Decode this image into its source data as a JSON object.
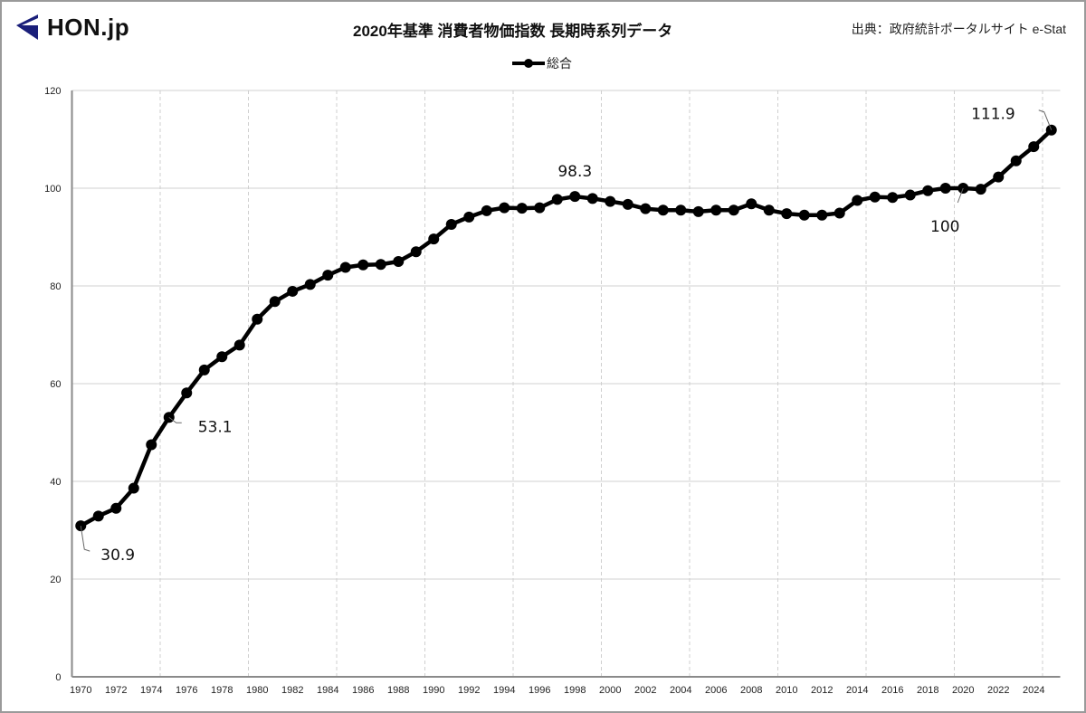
{
  "header": {
    "logo_text": "HON.jp",
    "title": "2020年基準  消費者物価指数  長期時系列データ",
    "source": "出典：政府統計ポータルサイト e-Stat"
  },
  "colors": {
    "line": "#000000",
    "logo": "#1a1f7a",
    "grid": "#d0d0d0"
  },
  "chart_data": {
    "type": "line",
    "title": "2020年基準  消費者物価指数  長期時系列データ",
    "xlabel": "",
    "ylabel": "",
    "ylim": [
      0,
      120
    ],
    "yticks": [
      0,
      20,
      40,
      60,
      80,
      100,
      120
    ],
    "xtick_labels": [
      "1970",
      "1972",
      "1974",
      "1976",
      "1978",
      "1980",
      "1982",
      "1984",
      "1986",
      "1988",
      "1990",
      "1992",
      "1994",
      "1996",
      "1998",
      "2000",
      "2002",
      "2004",
      "2006",
      "2008",
      "2010",
      "2012",
      "2014",
      "2016",
      "2018",
      "2020",
      "2022",
      "2024"
    ],
    "legend": {
      "position": "top-center",
      "entries": [
        "総合"
      ]
    },
    "grid": true,
    "x": [
      1970,
      1971,
      1972,
      1973,
      1974,
      1975,
      1976,
      1977,
      1978,
      1979,
      1980,
      1981,
      1982,
      1983,
      1984,
      1985,
      1986,
      1987,
      1988,
      1989,
      1990,
      1991,
      1992,
      1993,
      1994,
      1995,
      1996,
      1997,
      1998,
      1999,
      2000,
      2001,
      2002,
      2003,
      2004,
      2005,
      2006,
      2007,
      2008,
      2009,
      2010,
      2011,
      2012,
      2013,
      2014,
      2015,
      2016,
      2017,
      2018,
      2019,
      2020,
      2021,
      2022,
      2023,
      2024,
      2025
    ],
    "series": [
      {
        "name": "総合",
        "values": [
          30.9,
          32.9,
          34.5,
          38.6,
          47.5,
          53.1,
          58.1,
          62.8,
          65.5,
          67.9,
          73.2,
          76.8,
          78.9,
          80.3,
          82.2,
          83.8,
          84.3,
          84.4,
          85.0,
          87.0,
          89.6,
          92.6,
          94.1,
          95.4,
          96.0,
          95.9,
          96.0,
          97.7,
          98.3,
          97.9,
          97.3,
          96.7,
          95.8,
          95.5,
          95.5,
          95.2,
          95.5,
          95.5,
          96.8,
          95.5,
          94.8,
          94.5,
          94.5,
          94.9,
          97.5,
          98.2,
          98.1,
          98.6,
          99.5,
          100.0,
          100.0,
          99.8,
          102.3,
          105.6,
          108.5,
          111.9
        ]
      }
    ],
    "annotations": [
      {
        "year": 1970,
        "text": "30.9"
      },
      {
        "year": 1975,
        "text": "53.1"
      },
      {
        "year": 1998,
        "text": "98.3"
      },
      {
        "year": 2020,
        "text": "100"
      },
      {
        "year": 2025,
        "text": "111.9"
      }
    ]
  }
}
